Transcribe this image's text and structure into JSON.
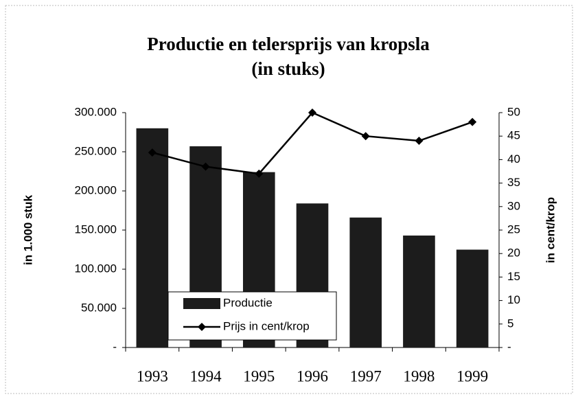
{
  "chart_data": {
    "type": "bar-line",
    "title": [
      "Productie en telersprijs van kropsla",
      "(in stuks)"
    ],
    "categories": [
      "1993",
      "1994",
      "1995",
      "1996",
      "1997",
      "1998",
      "1999"
    ],
    "series": [
      {
        "name": "Productie",
        "type": "bar",
        "color": "#1c1c1c",
        "values": [
          280000,
          257000,
          224000,
          184000,
          166000,
          143000,
          125000
        ]
      },
      {
        "name": "Prijs in cent/krop",
        "type": "line",
        "axis": "y2",
        "color": "#000000",
        "values": [
          41.5,
          38.5,
          37,
          50,
          45,
          44,
          48
        ]
      }
    ],
    "ylabel": "in 1.000 stuk",
    "y2label": "in cent/krop",
    "ylim": [
      0,
      300000
    ],
    "yticks": [
      {
        "value": 0,
        "label": "-"
      },
      {
        "value": 50000,
        "label": "50.000"
      },
      {
        "value": 100000,
        "label": "100.000"
      },
      {
        "value": 150000,
        "label": "150.000"
      },
      {
        "value": 200000,
        "label": "200.000"
      },
      {
        "value": 250000,
        "label": "250.000"
      },
      {
        "value": 300000,
        "label": "300.000"
      }
    ],
    "y2lim": [
      0,
      50
    ],
    "y2ticks": [
      {
        "value": 0,
        "label": "-"
      },
      5,
      10,
      15,
      20,
      25,
      30,
      35,
      40,
      45,
      50
    ],
    "legend": "lower-left",
    "grid": false
  }
}
